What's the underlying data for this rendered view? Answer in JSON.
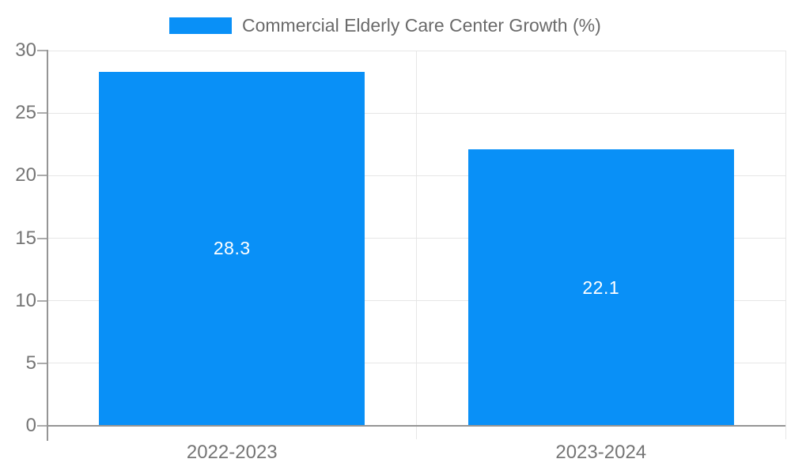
{
  "legend": {
    "label": "Commercial Elderly Care Center Growth (%)"
  },
  "chart_data": {
    "type": "bar",
    "title": "Commercial Elderly Care Center Growth (%)",
    "categories": [
      "2022-2023",
      "2023-2024"
    ],
    "series": [
      {
        "name": "Commercial Elderly Care Center Growth (%)",
        "values": [
          28.3,
          22.1
        ],
        "color": "#0990f7"
      }
    ],
    "data_labels": [
      "28.3",
      "22.1"
    ],
    "xlabel": "",
    "ylabel": "",
    "ylim": [
      0,
      30
    ],
    "y_ticks": [
      0,
      5,
      10,
      15,
      20,
      25,
      30
    ],
    "grid": true,
    "legend_position": "top-center",
    "background": "#ffffff"
  },
  "colors": {
    "bar": "#0990f7",
    "grid_line": "#e6e6e6",
    "axis_line": "#959595",
    "tick": "#ababab",
    "axis_label": "#757575",
    "legend_text": "#6a6a6a",
    "data_label": "#ffffff"
  }
}
